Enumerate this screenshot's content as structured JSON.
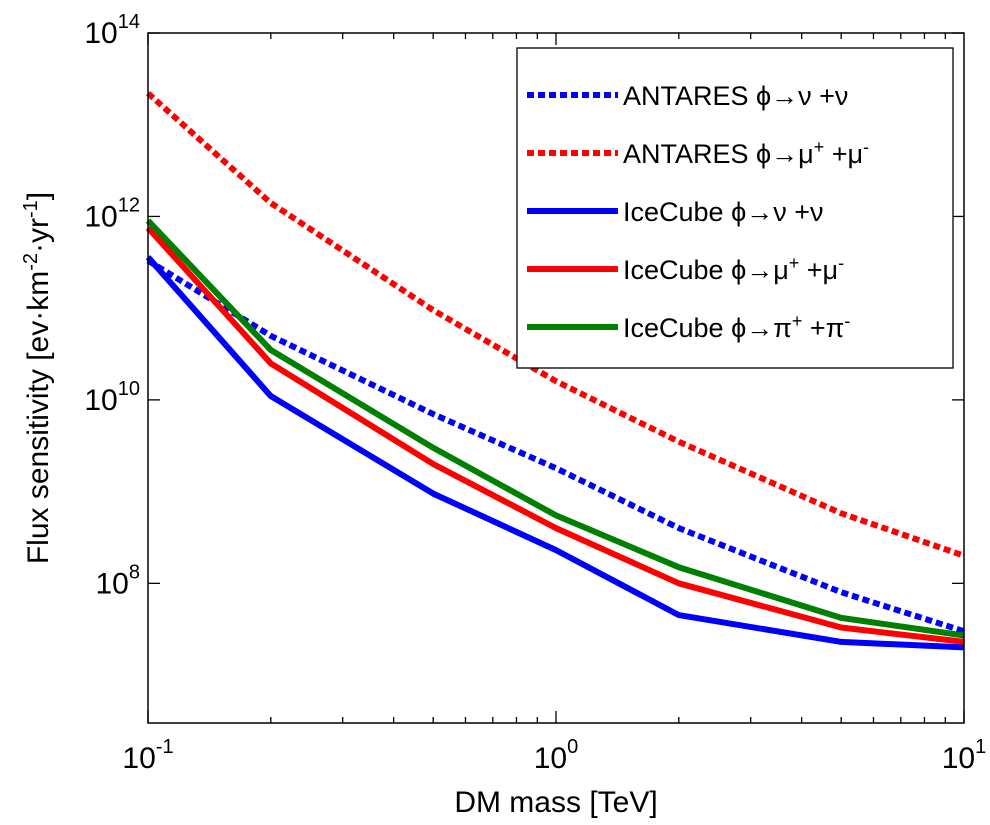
{
  "chart_data": {
    "type": "line",
    "xlabel": "DM mass [TeV]",
    "ylabel": {
      "parts": [
        {
          "text": "Flux sensitivity [ev·km"
        },
        {
          "text": "-2",
          "sup": true
        },
        {
          "text": "·yr"
        },
        {
          "text": "-1",
          "sup": true
        },
        {
          "text": "]"
        }
      ]
    },
    "xscale": "log",
    "yscale": "log",
    "xlim": [
      0.1,
      10
    ],
    "ylim": [
      3000000.0,
      100000000000000.0
    ],
    "xticks": [
      {
        "value": 0.1,
        "base": "10",
        "exp": "-1"
      },
      {
        "value": 1,
        "base": "10",
        "exp": "0"
      },
      {
        "value": 10,
        "base": "10",
        "exp": "1"
      }
    ],
    "yticks": [
      {
        "value": 100000000.0,
        "base": "10",
        "exp": "8"
      },
      {
        "value": 10000000000.0,
        "base": "10",
        "exp": "10"
      },
      {
        "value": 1000000000000.0,
        "base": "10",
        "exp": "12"
      },
      {
        "value": 100000000000000.0,
        "base": "10",
        "exp": "14"
      }
    ],
    "grid": false,
    "legend_position": "top-right",
    "series": [
      {
        "name": "ANTARES ϕ→ν +ν",
        "legend_parts": [
          {
            "text": "ANTARES ϕ→ν +ν"
          }
        ],
        "color": "#0000ff",
        "dash": "dotted",
        "x": [
          0.1,
          0.2,
          0.5,
          1,
          2,
          5,
          10
        ],
        "y": [
          330000000000.0,
          50000000000.0,
          7000000000.0,
          1800000000.0,
          400000000.0,
          80000000.0,
          30000000.0
        ]
      },
      {
        "name": "ANTARES ϕ→μ+ +μ-",
        "legend_parts": [
          {
            "text": "ANTARES ϕ→μ"
          },
          {
            "text": "+",
            "sup": true
          },
          {
            "text": " +μ"
          },
          {
            "text": "-",
            "sup": true
          }
        ],
        "color": "#ff0000",
        "dash": "dotted",
        "x": [
          0.1,
          0.2,
          0.5,
          1,
          2,
          5,
          10
        ],
        "y": [
          22000000000000.0,
          1400000000000.0,
          95000000000.0,
          16000000000.0,
          3500000000.0,
          580000000.0,
          200000000.0
        ]
      },
      {
        "name": "IceCube ϕ→ν +ν",
        "legend_parts": [
          {
            "text": "IceCube ϕ→ν +ν"
          }
        ],
        "color": "#0000ff",
        "dash": "solid",
        "x": [
          0.1,
          0.2,
          0.5,
          1,
          2,
          5,
          10
        ],
        "y": [
          360000000000.0,
          11000000000.0,
          950000000.0,
          230000000.0,
          45000000.0,
          23000000.0,
          20000000.0
        ]
      },
      {
        "name": "IceCube ϕ→μ+ +μ-",
        "legend_parts": [
          {
            "text": "IceCube ϕ→μ"
          },
          {
            "text": "+",
            "sup": true
          },
          {
            "text": " +μ"
          },
          {
            "text": "-",
            "sup": true
          }
        ],
        "color": "#ff0000",
        "dash": "solid",
        "x": [
          0.1,
          0.2,
          0.5,
          1,
          2,
          5,
          10
        ],
        "y": [
          750000000000.0,
          25000000000.0,
          2000000000.0,
          400000000.0,
          100000000.0,
          33000000.0,
          23000000.0
        ]
      },
      {
        "name": "IceCube ϕ→π+ +π-",
        "legend_parts": [
          {
            "text": "IceCube ϕ→π"
          },
          {
            "text": "+",
            "sup": true
          },
          {
            "text": " +π"
          },
          {
            "text": "-",
            "sup": true
          }
        ],
        "color": "#008000",
        "dash": "solid",
        "x": [
          0.1,
          0.2,
          0.5,
          1,
          2,
          5,
          10
        ],
        "y": [
          900000000000.0,
          35000000000.0,
          3000000000.0,
          550000000.0,
          150000000.0,
          42000000.0,
          27000000.0
        ]
      }
    ]
  }
}
